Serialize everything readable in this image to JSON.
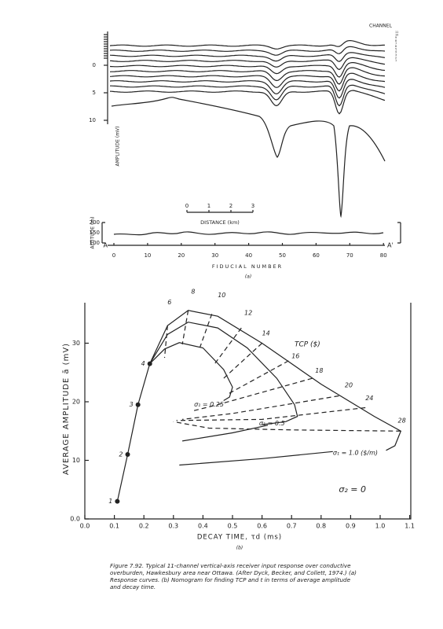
{
  "panel_a": {
    "channel_title": "CHANNEL",
    "channels": [
      "11",
      "10",
      "9",
      "8",
      "7",
      "6",
      "5",
      "4",
      "3",
      "2",
      "1"
    ],
    "amplitude_label": "AMPLITUDE (mV)",
    "amplitude_ticks": [
      "0",
      "5",
      "10"
    ],
    "distance_ticks": [
      "0",
      "1",
      "2",
      "3"
    ],
    "distance_label": "DISTANCE (km)",
    "altitude_label": "ALTITUDE (m)",
    "altitude_ticks": [
      "200",
      "150",
      "100"
    ],
    "start_marker": "A",
    "end_marker": "A'",
    "fiducial_ticks": [
      "0",
      "10",
      "20",
      "30",
      "40",
      "50",
      "60",
      "70",
      "80"
    ],
    "fiducial_label": "FIDUCIAL NUMBER",
    "panel_label": "(a)"
  },
  "panel_b": {
    "y_label": "AVERAGE AMPLITUDE  ā (mV)",
    "y_ticks": [
      "0.0",
      "10",
      "20",
      "30"
    ],
    "x_label": "DECAY TIME, τd (ms)",
    "x_ticks": [
      "0.0",
      "0.1",
      "0.2",
      "0.3",
      "0.4",
      "0.5",
      "0.6",
      "0.7",
      "0.8",
      "0.9",
      "1.0",
      "1.1"
    ],
    "point_labels": [
      "1",
      "2",
      "3",
      "4"
    ],
    "tcp_labels": [
      "6",
      "8",
      "10",
      "12",
      "14",
      "16",
      "18",
      "20",
      "24",
      "28"
    ],
    "tcp_title": "TCP ($)",
    "sigma_labels": [
      "σ₁ = 0.25",
      "σ₁ = 0.5",
      "σ₁ = 1.0 ($/m)"
    ],
    "sigma2_label": "σ₂ = 0",
    "panel_label": "(b)"
  },
  "caption": {
    "lines": [
      "Figure 7.92. Typical 11-channel vertical-axis receiver input response over conductive",
      "overburden, Hawkesbury area near Ottawa. (After Dyck, Becker, and Collett, 1974.) (a)",
      "Response curves. (b) Nomogram for finding TCP and t in terms of average amplitude",
      "and decay time."
    ]
  }
}
